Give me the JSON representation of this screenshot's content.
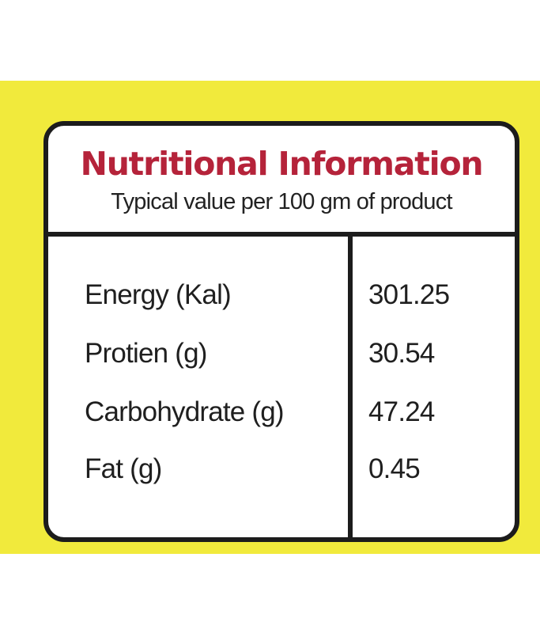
{
  "header": {
    "title": "Nutritional Information",
    "subtitle": "Typical value per 100 gm of product"
  },
  "rows": [
    {
      "label": "Energy (Kal)",
      "value": "301.25"
    },
    {
      "label": "Protien (g)",
      "value": "30.54"
    },
    {
      "label": "Carbohydrate (g)",
      "value": "47.24"
    },
    {
      "label": "Fat (g)",
      "value": "0.45"
    }
  ],
  "colors": {
    "background_band": "#f1ea3c",
    "title": "#b5233a",
    "border": "#1c1c1c"
  }
}
